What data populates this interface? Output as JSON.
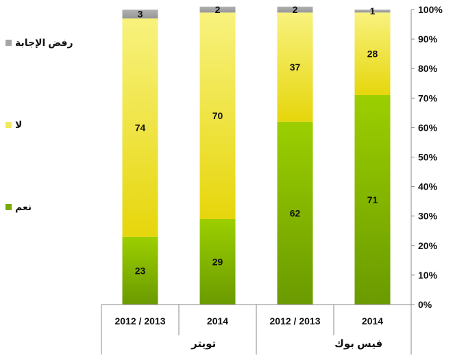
{
  "chart_data": {
    "type": "bar",
    "stacked": true,
    "percent_stacked": true,
    "categories": [
      "2012 / 2013",
      "2014",
      "2012 / 2013",
      "2014"
    ],
    "groups": [
      {
        "label": "تويتر",
        "categories": [
          "2012 / 2013",
          "2014"
        ]
      },
      {
        "label": "فيس بوك",
        "categories": [
          "2012 / 2013",
          "2014"
        ]
      }
    ],
    "series": [
      {
        "name": "نعم",
        "values": [
          23,
          29,
          62,
          71
        ],
        "color": "#7aab00"
      },
      {
        "name": "لا",
        "values": [
          74,
          70,
          37,
          28
        ],
        "color": "#f2ea5c"
      },
      {
        "name": "رفض الإجابة",
        "values": [
          3,
          2,
          2,
          1
        ],
        "color": "#a6a6a6"
      }
    ],
    "y_tick_labels": [
      "0%",
      "10%",
      "20%",
      "30%",
      "40%",
      "50%",
      "60%",
      "70%",
      "80%",
      "90%",
      "100%"
    ],
    "ylim": [
      0,
      100
    ],
    "y_axis_position": "right",
    "legend_position": "left",
    "grid": false
  }
}
